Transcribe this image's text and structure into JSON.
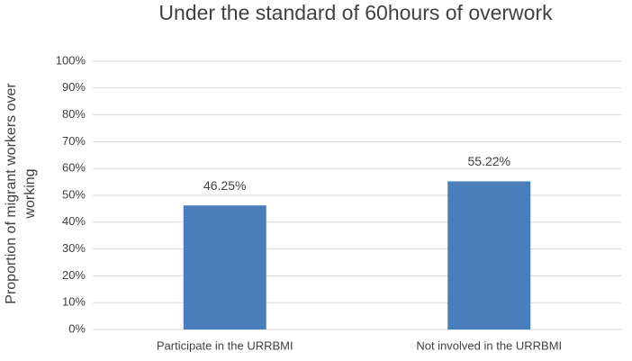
{
  "chart_data": {
    "type": "bar",
    "title": "Under the standard of 60hours of overwork",
    "ylabel": "Proportion of migrant workers over working",
    "categories": [
      "Participate in the URRBMI",
      "Not involved in the URRBMI"
    ],
    "values": [
      46.25,
      55.22
    ],
    "value_labels": [
      "46.25%",
      "55.22%"
    ],
    "color": "#4a7ebb",
    "ylim": [
      0,
      100
    ],
    "yticks": [
      {
        "value": 0,
        "label": "0%"
      },
      {
        "value": 10,
        "label": "10%"
      },
      {
        "value": 20,
        "label": "20%"
      },
      {
        "value": 30,
        "label": "30%"
      },
      {
        "value": 40,
        "label": "40%"
      },
      {
        "value": 50,
        "label": "50%"
      },
      {
        "value": 60,
        "label": "60%"
      },
      {
        "value": 70,
        "label": "70%"
      },
      {
        "value": 80,
        "label": "80%"
      },
      {
        "value": 90,
        "label": "90%"
      },
      {
        "value": 100,
        "label": "100%"
      }
    ],
    "grid": true
  }
}
